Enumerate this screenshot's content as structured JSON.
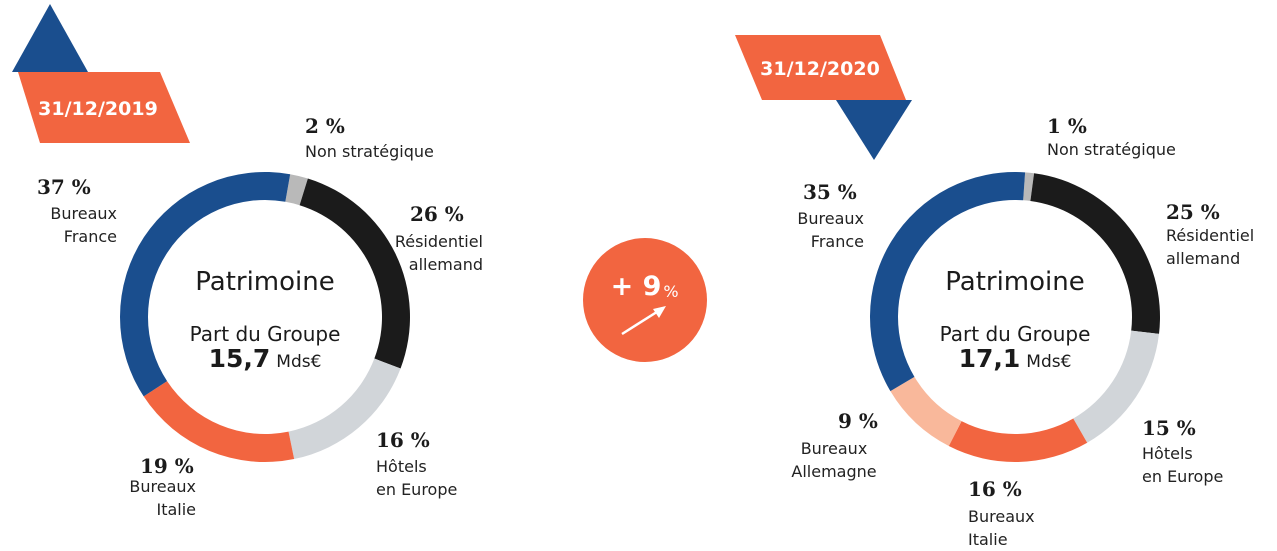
{
  "chart_data": [
    {
      "type": "pie",
      "date": "31/12/2019",
      "center_title": "Patrimoine",
      "center_subtitle": "Part du Groupe",
      "total": "15,7",
      "total_unit": "Mds€",
      "categories": [
        "Non stratégique",
        "Résidentiel\nallemand",
        "Hôtels\nen Europe",
        "Bureaux\nItalie",
        "Bureaux\nFrance"
      ],
      "values": [
        2,
        26,
        16,
        19,
        37
      ],
      "value_labels": [
        "2 %",
        "26 %",
        "16 %",
        "19 %",
        "37 %"
      ],
      "colors": [
        "#b9b9b9",
        "#1b1b1b",
        "#d1d5d9",
        "#f26540",
        "#1a4e8e"
      ]
    },
    {
      "type": "pie",
      "date": "31/12/2020",
      "center_title": "Patrimoine",
      "center_subtitle": "Part du Groupe",
      "total": "17,1",
      "total_unit": "Mds€",
      "categories": [
        "Non stratégique",
        "Résidentiel\nallemand",
        "Hôtels\nen Europe",
        "Bureaux\nItalie",
        "Bureaux\nAllemagne",
        "Bureaux\nFrance"
      ],
      "values": [
        1,
        25,
        15,
        16,
        9,
        35
      ],
      "value_labels": [
        "1 %",
        "25 %",
        "15 %",
        "16 %",
        "9 %",
        "35 %"
      ],
      "colors": [
        "#b9b9b9",
        "#1b1b1b",
        "#d1d5d9",
        "#f26540",
        "#f9b89b",
        "#1a4e8e"
      ]
    }
  ],
  "change": {
    "label": "+ 9",
    "unit": "%"
  }
}
